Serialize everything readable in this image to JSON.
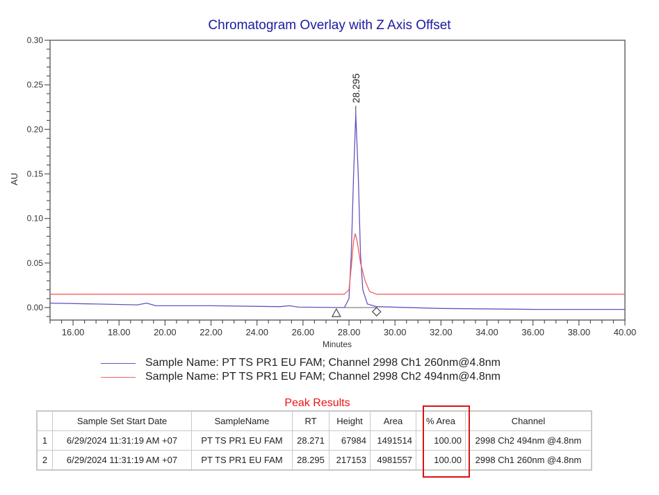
{
  "chart_data": {
    "type": "line",
    "title": "Chromatogram Overlay with Z Axis Offset",
    "xlabel": "Minutes",
    "ylabel": "AU",
    "xlim": [
      15.0,
      40.0
    ],
    "ylim": [
      -0.01,
      0.3
    ],
    "x_ticks": [
      "16.00",
      "18.00",
      "20.00",
      "22.00",
      "24.00",
      "26.00",
      "28.00",
      "30.00",
      "32.00",
      "34.00",
      "36.00",
      "38.00",
      "40.00"
    ],
    "y_ticks": [
      "0.00",
      "0.05",
      "0.10",
      "0.15",
      "0.20",
      "0.25",
      "0.30"
    ],
    "peak_label": "28.295",
    "series": [
      {
        "name": "Sample Name:  PT TS PR1 EU FAM; Channel 2998 Ch1 260nm@4.8nm",
        "color": "#6a4fc0",
        "x": [
          15.0,
          17.0,
          18.8,
          19.2,
          19.6,
          22.0,
          25.0,
          25.4,
          25.8,
          27.8,
          28.0,
          28.1,
          28.2,
          28.295,
          28.4,
          28.5,
          28.6,
          28.8,
          29.2,
          32.0,
          36.0,
          40.0
        ],
        "y": [
          0.005,
          0.004,
          0.003,
          0.005,
          0.002,
          0.002,
          0.001,
          0.002,
          0.0005,
          0.0,
          0.01,
          0.06,
          0.15,
          0.217,
          0.15,
          0.06,
          0.02,
          0.004,
          0.001,
          -0.001,
          -0.002,
          -0.002
        ]
      },
      {
        "name": "Sample Name:  PT TS PR1 EU FAM; Channel 2998 Ch2 494nm@4.8nm",
        "color": "#f06060",
        "x": [
          15.0,
          27.8,
          28.0,
          28.1,
          28.2,
          28.271,
          28.35,
          28.5,
          28.7,
          28.9,
          29.2,
          40.0
        ],
        "y": [
          0.015,
          0.015,
          0.02,
          0.045,
          0.075,
          0.083,
          0.075,
          0.05,
          0.03,
          0.018,
          0.015,
          0.015
        ]
      }
    ],
    "annotations": [
      {
        "type": "triangle",
        "x": 27.45,
        "y": -0.006
      },
      {
        "type": "diamond",
        "x": 29.2,
        "y": -0.004
      }
    ],
    "grid": false,
    "legend_position": "below"
  },
  "legend": {
    "items": [
      {
        "label": "Sample Name:  PT TS PR1 EU FAM; Channel 2998 Ch1 260nm@4.8nm",
        "color": "#6a4fc0"
      },
      {
        "label": "Sample Name:  PT TS PR1 EU FAM; Channel 2998 Ch2 494nm@4.8nm",
        "color": "#f06060"
      }
    ]
  },
  "peak_results": {
    "title": "Peak Results",
    "headers": [
      "",
      "Sample Set Start Date",
      "SampleName",
      "RT",
      "Height",
      "Area",
      "% Area",
      "Channel"
    ],
    "rows": [
      [
        "1",
        "6/29/2024 11:31:19 AM +07",
        "PT TS PR1 EU FAM",
        "28.271",
        "67984",
        "1491514",
        "100.00",
        "2998 Ch2 494nm @4.8nm"
      ],
      [
        "2",
        "6/29/2024 11:31:19 AM +07",
        "PT TS PR1 EU FAM",
        "28.295",
        "217153",
        "4981557",
        "100.00",
        "2998 Ch1 260nm @4.8nm"
      ]
    ],
    "highlight_column": "% Area",
    "highlight_color": "#dd1111"
  }
}
